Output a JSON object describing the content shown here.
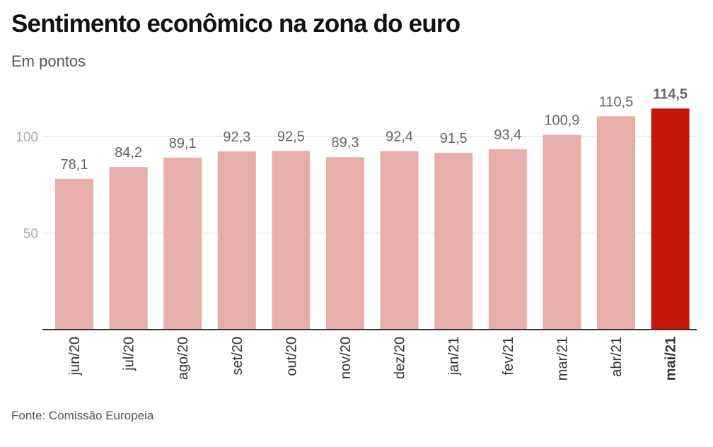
{
  "header": {
    "title": "Sentimento econômico na zona do euro",
    "subtitle": "Em pontos"
  },
  "footer": {
    "source": "Fonte: Comissão Europeia"
  },
  "colors": {
    "bar": "#e8aeaa",
    "highlight_bar": "#c4170c",
    "grid": "#dddddd",
    "baseline": "#333333"
  },
  "chart_data": {
    "type": "bar",
    "categories": [
      "jun/20",
      "jul/20",
      "ago/20",
      "set/20",
      "out/20",
      "nov/20",
      "dez/20",
      "jan/21",
      "fev/21",
      "mar/21",
      "abr/21",
      "mai/21"
    ],
    "values": [
      78.1,
      84.2,
      89.1,
      92.3,
      92.5,
      89.3,
      92.4,
      91.5,
      93.4,
      100.9,
      110.5,
      114.5
    ],
    "value_labels": [
      "78,1",
      "84,2",
      "89,1",
      "92,3",
      "92,5",
      "89,3",
      "92,4",
      "91,5",
      "93,4",
      "100,9",
      "110,5",
      "114,5"
    ],
    "highlight_index": 11,
    "yticks": [
      50,
      100
    ],
    "ylim": [
      0,
      110
    ],
    "grid": true,
    "title": "Sentimento econômico na zona do euro",
    "ylabel": "Em pontos",
    "xlabel": ""
  }
}
